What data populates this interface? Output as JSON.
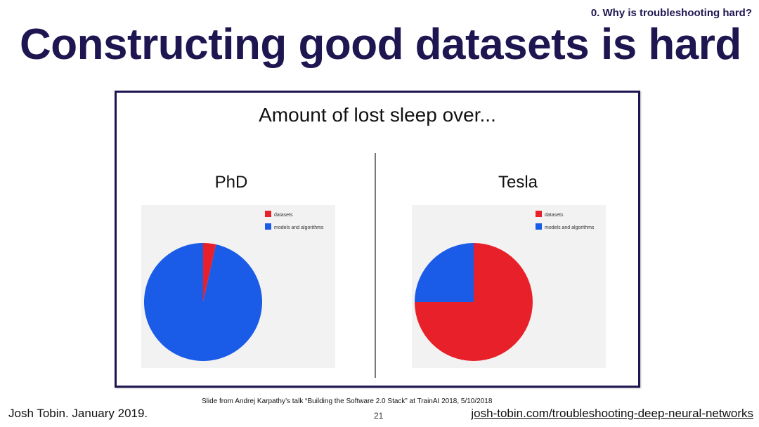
{
  "header": {
    "section_tag": "0. Why is troubleshooting hard?",
    "title": "Constructing good datasets is hard"
  },
  "panel": {
    "heading": "Amount of lost sleep over..."
  },
  "chart_data": [
    {
      "type": "pie",
      "title": "PhD",
      "legend_position": "top-right",
      "categories": [
        "datasets",
        "models and algorithms"
      ],
      "values": [
        3.5,
        96.5
      ],
      "colors": [
        "#e8202a",
        "#1a5be8"
      ],
      "start_angle_deg": 0
    },
    {
      "type": "pie",
      "title": "Tesla",
      "legend_position": "top-right",
      "categories": [
        "datasets",
        "models and algorithms"
      ],
      "values": [
        75,
        25
      ],
      "colors": [
        "#e8202a",
        "#1a5be8"
      ],
      "start_angle_deg": 0
    }
  ],
  "footer": {
    "author": "Josh Tobin. January 2019.",
    "credit": "Slide from Andrej Karpathy’s talk “Building the Software 2.0 Stack” at TrainAI 2018, 5/10/2018",
    "page": "21",
    "link": "josh-tobin.com/troubleshooting-deep-neural-networks"
  }
}
